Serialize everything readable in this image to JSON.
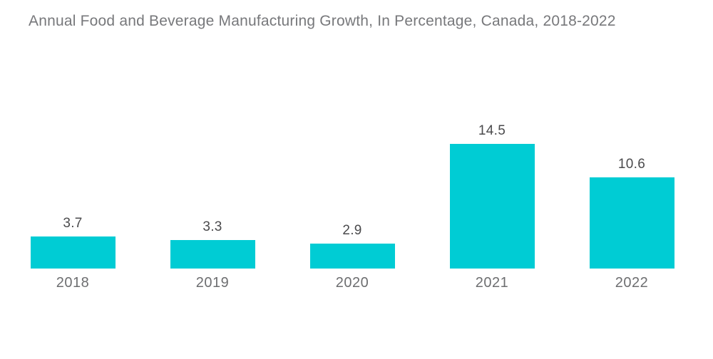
{
  "title": "Annual Food and Beverage Manufacturing Growth, In Percentage, Canada, 2018-2022",
  "chart_data": {
    "type": "bar",
    "title": "Annual Food and Beverage Manufacturing Growth, In Percentage, Canada, 2018-2022",
    "categories": [
      "2018",
      "2019",
      "2020",
      "2021",
      "2022"
    ],
    "values": [
      3.7,
      3.3,
      2.9,
      14.5,
      10.6
    ],
    "xlabel": "",
    "ylabel": "",
    "ylim": [
      0,
      16
    ],
    "grid": false,
    "legend": false,
    "bar_color": "#00ccd4",
    "value_label_color": "#4a4a4c",
    "category_label_color": "#6d6e70",
    "title_color": "#77787b",
    "background_color": "#ffffff"
  }
}
